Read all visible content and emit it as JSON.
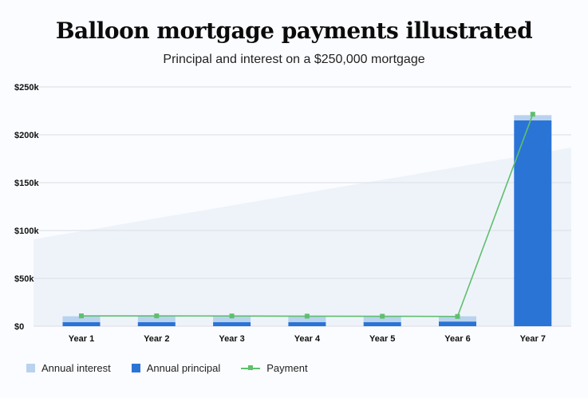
{
  "header": {
    "title": "Balloon mortgage payments illustrated",
    "subtitle": "Principal and interest on a $250,000 mortgage"
  },
  "colors": {
    "interest": "#b9d2ee",
    "principal": "#2a74d6",
    "payment": "#5fbf6d",
    "grid": "#d9dde4",
    "background_shape": "#eef3fa"
  },
  "legend": {
    "interest_label": "Annual interest",
    "principal_label": "Annual principal",
    "payment_label": "Payment"
  },
  "chart_data": {
    "type": "bar",
    "stacked": true,
    "categories": [
      "Year 1",
      "Year 2",
      "Year 3",
      "Year 4",
      "Year 5",
      "Year 6",
      "Year 7"
    ],
    "y_ticks": [
      "$0",
      "$50k",
      "$100k",
      "$150k",
      "$200k",
      "$250k"
    ],
    "ylim": [
      0,
      250000
    ],
    "grid": true,
    "legend_position": "bottom-left",
    "series": [
      {
        "name": "Annual principal",
        "type": "bar",
        "values": [
          4200,
          4200,
          4200,
          4200,
          4200,
          4800,
          215000
        ]
      },
      {
        "name": "Annual interest",
        "type": "bar",
        "values": [
          6200,
          6200,
          6200,
          6000,
          6000,
          5600,
          5500
        ]
      },
      {
        "name": "Payment",
        "type": "line",
        "values": [
          10800,
          10800,
          10700,
          10500,
          10400,
          10200,
          221500
        ]
      }
    ]
  }
}
